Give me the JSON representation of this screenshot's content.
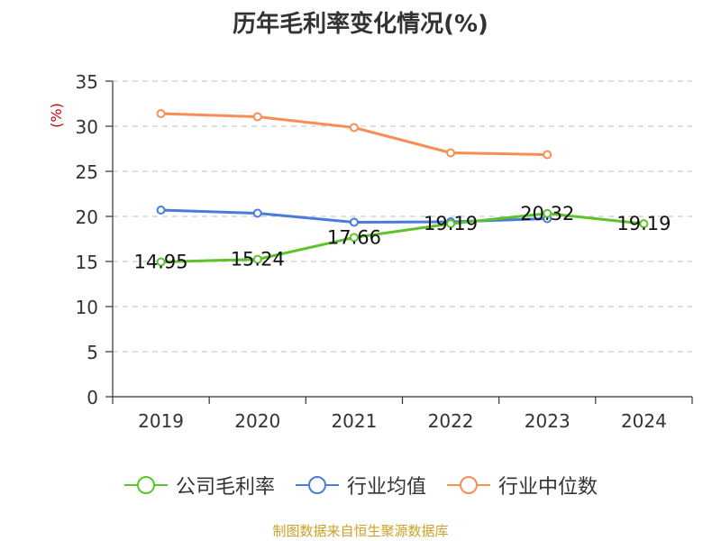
{
  "chart_data": {
    "type": "line",
    "title": "历年毛利率变化情况(%)",
    "ylabel": "(%)",
    "xlabel": "",
    "categories": [
      "2019",
      "2020",
      "2021",
      "2022",
      "2023",
      "2024"
    ],
    "ylim": [
      0,
      35
    ],
    "yticks": [
      0,
      5,
      10,
      15,
      20,
      25,
      30,
      35
    ],
    "grid": true,
    "legend_position": "bottom",
    "series": [
      {
        "name": "公司毛利率",
        "color": "#5ec32a",
        "values": [
          14.95,
          15.24,
          17.66,
          19.19,
          20.32,
          19.19
        ],
        "labels": [
          "14.95",
          "15.24",
          "17.66",
          "19.19",
          "20.32",
          "19.19"
        ]
      },
      {
        "name": "行业均值",
        "color": "#4a7bd8",
        "values": [
          20.7,
          20.35,
          19.35,
          19.4,
          19.75,
          null
        ]
      },
      {
        "name": "行业中位数",
        "color": "#f98d56",
        "values": [
          31.4,
          31.05,
          29.85,
          27.05,
          26.85,
          null
        ]
      }
    ]
  },
  "source": "制图数据来自恒生聚源数据库",
  "colors": {
    "axis": "#333333",
    "grid": "#cccccc",
    "ylabel": "#cc0000",
    "source": "#c9a227"
  }
}
